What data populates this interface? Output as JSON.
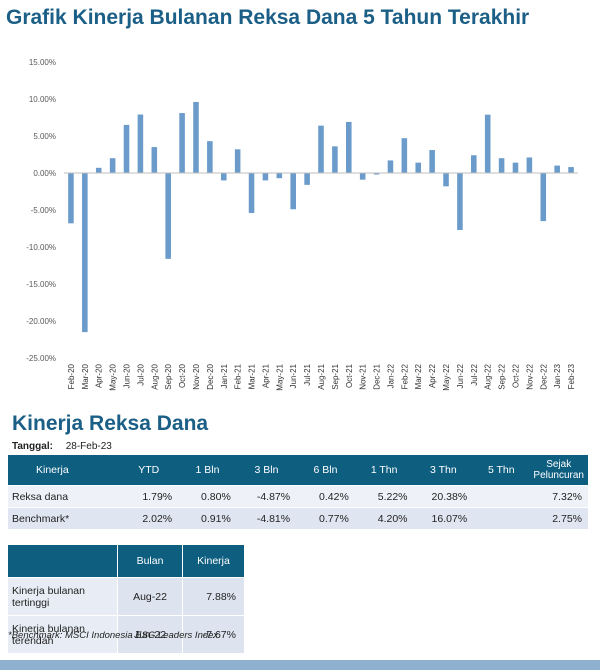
{
  "title": "Grafik Kinerja Bulanan Reksa Dana 5 Tahun Terakhir",
  "colors": {
    "bar": "#6a9bcb",
    "header": "#0e5e80",
    "title": "#1b5f86"
  },
  "chart_data": {
    "type": "bar",
    "categories": [
      "Feb-20",
      "Mar-20",
      "Apr-20",
      "May-20",
      "Jun-20",
      "Jul-20",
      "Aug-20",
      "Sep-20",
      "Oct-20",
      "Nov-20",
      "Dec-20",
      "Jan-21",
      "Feb-21",
      "Mar-21",
      "Apr-21",
      "May-21",
      "Jun-21",
      "Jul-21",
      "Aug-21",
      "Sep-21",
      "Oct-21",
      "Nov-21",
      "Dec-21",
      "Jan-22",
      "Feb-22",
      "Mar-22",
      "Apr-22",
      "May-22",
      "Jun-22",
      "Jul-22",
      "Aug-22",
      "Sep-22",
      "Oct-22",
      "Nov-22",
      "Dec-22",
      "Jan-23",
      "Feb-23"
    ],
    "tick_labels": [
      "Feb-20",
      "Mar-20",
      "Apr-20",
      "May-20",
      "Jun-20",
      "Jul-20",
      "Aug-20",
      "Sep-20",
      "Oct-20",
      "Nov-20",
      "Dec-20",
      "Jan-21",
      "Feb-21",
      "Mar-21",
      "Apr-21",
      "May-21",
      "Jun-21",
      "Jul-21",
      "Aug-21",
      "Sep-21",
      "Oct-21",
      "Nov-21",
      "Dec-21",
      "Jan-22",
      "Feb-22",
      "Mar-22",
      "Apr-22",
      "May-22",
      "Jun-22",
      "Jul-22",
      "Aug-22",
      "Sep-22",
      "Oct-22",
      "Nov-22",
      "Dec-22",
      "Jan-23",
      "Feb-23"
    ],
    "values": [
      -6.8,
      -21.5,
      0.7,
      2.0,
      6.5,
      7.9,
      3.5,
      -11.6,
      8.1,
      9.6,
      4.3,
      -1.0,
      3.2,
      -5.4,
      -1.0,
      -0.7,
      -4.9,
      -1.6,
      6.4,
      3.6,
      6.9,
      -0.9,
      -0.2,
      1.7,
      4.7,
      1.4,
      3.1,
      -1.8,
      -7.7,
      2.4,
      7.88,
      2.0,
      1.4,
      2.1,
      -6.5,
      1.0,
      0.8
    ],
    "ylim": [
      -25,
      15
    ],
    "yticks": [
      -25,
      -20,
      -15,
      -10,
      -5,
      0,
      5,
      10,
      15
    ],
    "ytick_labels": [
      "-25.00%",
      "-20.00%",
      "-15.00%",
      "-10.00%",
      "-5.00%",
      "0.00%",
      "5.00%",
      "10.00%",
      "15.00%"
    ],
    "grid": false,
    "legend": "none"
  },
  "section_title": "Kinerja Reksa Dana",
  "tanggal_label": "Tanggal:",
  "tanggal_value": "28-Feb-23",
  "performance_table": {
    "headers": [
      "Kinerja",
      "YTD",
      "1 Bln",
      "3 Bln",
      "6 Bln",
      "1 Thn",
      "3 Thn",
      "5 Thn",
      "Sejak Peluncuran"
    ],
    "rows": [
      [
        "Reksa dana",
        "1.79%",
        "0.80%",
        "-4.87%",
        "0.42%",
        "5.22%",
        "20.38%",
        "",
        "7.32%"
      ],
      [
        "Benchmark*",
        "2.02%",
        "0.91%",
        "-4.81%",
        "0.77%",
        "4.20%",
        "16.07%",
        "",
        "2.75%"
      ]
    ]
  },
  "highlight_table": {
    "headers": [
      "",
      "Bulan",
      "Kinerja"
    ],
    "rows": [
      [
        "Kinerja bulanan tertinggi",
        "Aug-22",
        "7.88%"
      ],
      [
        "Kinerja bulanan terendah",
        "Jun-22",
        "-7.67%"
      ]
    ]
  },
  "footnote": "*Benchmark: MSCI Indonesia ESG Leaders Index"
}
